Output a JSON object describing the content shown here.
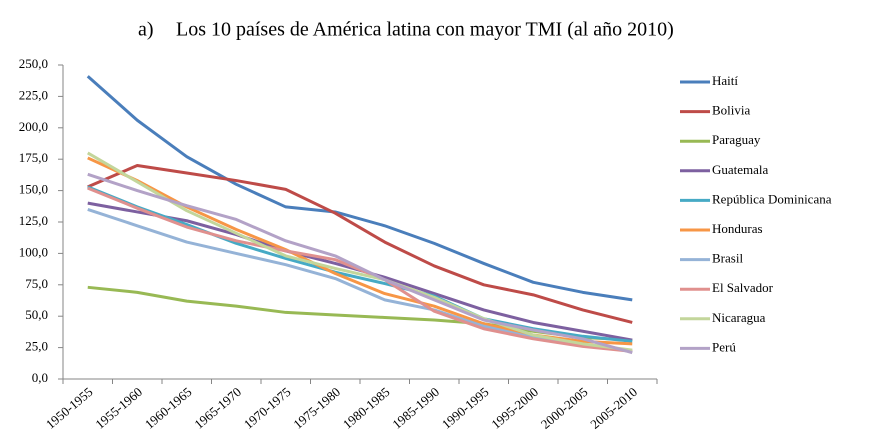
{
  "chart_data": {
    "type": "line",
    "label": "a)",
    "title": "Los 10 países de América latina con mayor TMI (al año 2010)",
    "categories": [
      "1950-1955",
      "1955-1960",
      "1960-1965",
      "1965-1970",
      "1970-1975",
      "1975-1980",
      "1980-1985",
      "1985-1990",
      "1990-1995",
      "1995-2000",
      "2000-2005",
      "2005-2010"
    ],
    "ylim": [
      0,
      250
    ],
    "yticks": [
      {
        "value": 0,
        "label": "0,0"
      },
      {
        "value": 25,
        "label": "25,0"
      },
      {
        "value": 50,
        "label": "50,0"
      },
      {
        "value": 75,
        "label": "75,0"
      },
      {
        "value": 100,
        "label": "100,0"
      },
      {
        "value": 125,
        "label": "125,0"
      },
      {
        "value": 150,
        "label": "150,0"
      },
      {
        "value": 175,
        "label": "175,0"
      },
      {
        "value": 200,
        "label": "200,0"
      },
      {
        "value": 225,
        "label": "225,0"
      },
      {
        "value": 250,
        "label": "250,0"
      }
    ],
    "legend": "right",
    "series": [
      {
        "name": "Haití",
        "color": "#4a7ebb",
        "values": [
          241,
          206,
          177,
          155,
          137,
          133,
          122,
          108,
          92,
          77,
          69,
          63
        ]
      },
      {
        "name": "Bolivia",
        "color": "#be4b48",
        "values": [
          153,
          170,
          164,
          158,
          151,
          132,
          109,
          90,
          75,
          67,
          55,
          45
        ]
      },
      {
        "name": "Paraguay",
        "color": "#98b954",
        "values": [
          73,
          69,
          62,
          58,
          53,
          51,
          49,
          47,
          44,
          38,
          33,
          31
        ]
      },
      {
        "name": "Guatemala",
        "color": "#7d60a0",
        "values": [
          140,
          133,
          126,
          115,
          102,
          92,
          81,
          68,
          55,
          45,
          38,
          31
        ]
      },
      {
        "name": "República Dominicana",
        "color": "#46aac5",
        "values": [
          153,
          137,
          123,
          108,
          96,
          85,
          76,
          66,
          48,
          40,
          34,
          30
        ]
      },
      {
        "name": "Honduras",
        "color": "#f79646",
        "values": [
          176,
          158,
          137,
          119,
          103,
          84,
          68,
          58,
          44,
          35,
          30,
          28
        ]
      },
      {
        "name": "Brasil",
        "color": "#95b3d7",
        "values": [
          135,
          122,
          109,
          100,
          91,
          80,
          63,
          55,
          42,
          33,
          27,
          22
        ]
      },
      {
        "name": "El Salvador",
        "color": "#e0908e",
        "values": [
          152,
          136,
          121,
          110,
          102,
          95,
          79,
          54,
          40,
          32,
          26,
          22
        ]
      },
      {
        "name": "Nicaragua",
        "color": "#c3d69b",
        "values": [
          180,
          157,
          134,
          116,
          98,
          88,
          79,
          65,
          48,
          35,
          28,
          23
        ]
      },
      {
        "name": "Perú",
        "color": "#b3a2c7",
        "values": [
          163,
          150,
          138,
          127,
          110,
          98,
          79,
          63,
          47,
          39,
          32,
          21
        ]
      }
    ]
  }
}
